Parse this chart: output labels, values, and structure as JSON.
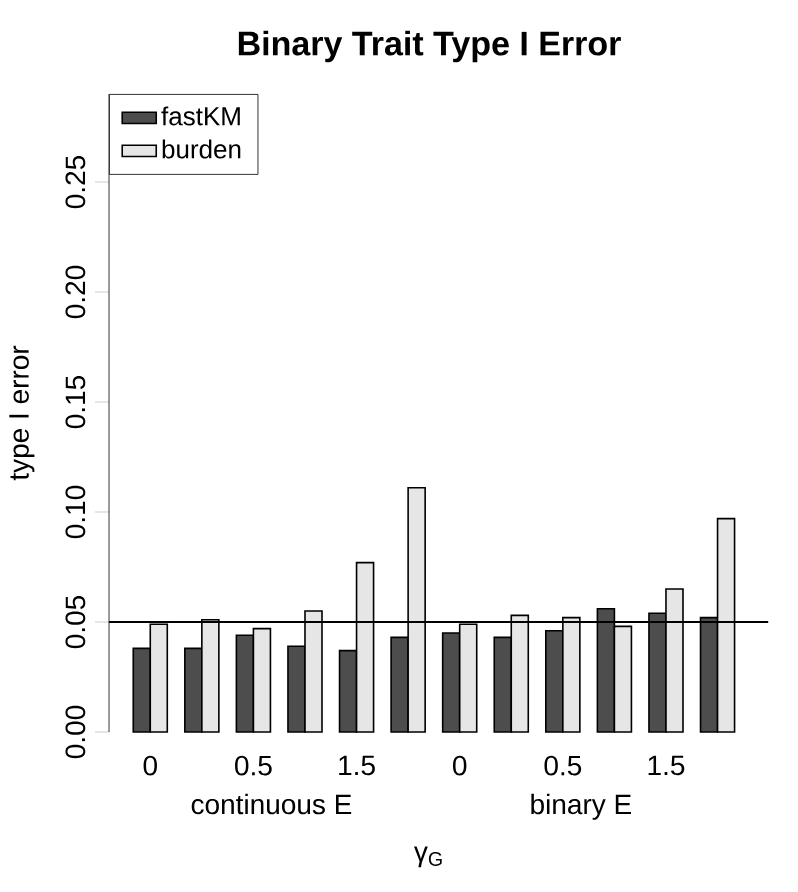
{
  "chart_data": {
    "type": "bar",
    "title": "Binary Trait Type I Error",
    "xlabel": "γ$_{G}$",
    "ylabel": "type I error",
    "categories": [
      "0",
      null,
      "0.5",
      null,
      "1.5",
      null,
      "0",
      null,
      "0.5",
      null,
      "1.5",
      null
    ],
    "series": [
      {
        "name": "fastKM",
        "color": "#4d4d4d",
        "values": [
          0.038,
          0.038,
          0.044,
          0.039,
          0.037,
          0.043,
          0.045,
          0.043,
          0.046,
          0.056,
          0.054,
          0.052
        ]
      },
      {
        "name": "burden",
        "color": "#e6e6e6",
        "values": [
          0.049,
          0.051,
          0.047,
          0.055,
          0.077,
          0.111,
          0.049,
          0.053,
          0.052,
          0.048,
          0.065,
          0.097
        ]
      }
    ],
    "ylim": [
      0,
      0.29
    ],
    "yticks": [
      {
        "value": 0,
        "label": "0.00"
      },
      {
        "value": 0.05,
        "label": "0.05"
      },
      {
        "value": 0.1,
        "label": "0.10"
      },
      {
        "value": 0.15,
        "label": "0.15"
      },
      {
        "value": 0.2,
        "label": "0.20"
      },
      {
        "value": 0.25,
        "label": "0.25"
      }
    ],
    "ref_lines": [
      {
        "axis": "y",
        "value": 0.05,
        "color": "#000000"
      }
    ],
    "annotations": [
      "continuous E",
      "binary E"
    ],
    "legend": "top left"
  }
}
